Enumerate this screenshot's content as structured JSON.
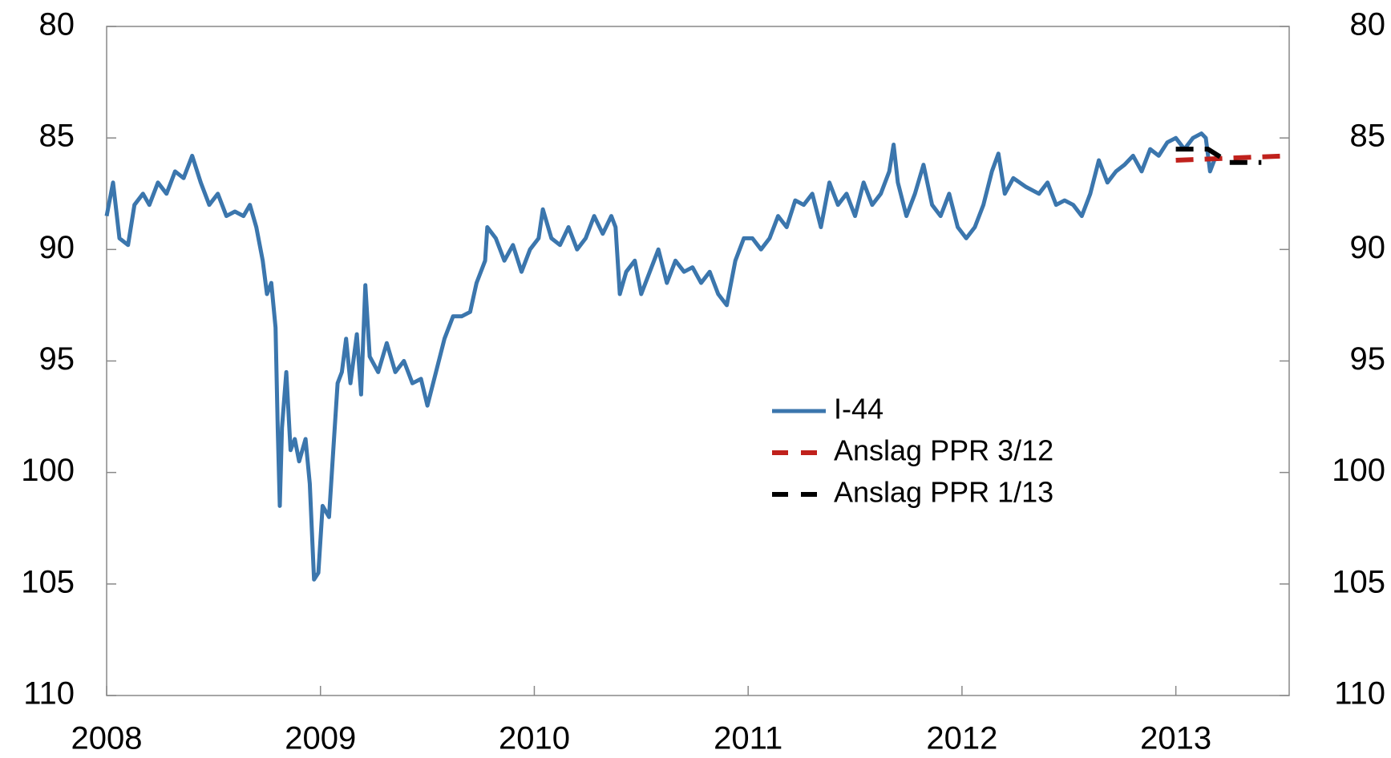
{
  "chart_data": {
    "type": "line",
    "xlim": [
      2008,
      2013.53
    ],
    "xticks": [
      2008,
      2009,
      2010,
      2011,
      2012,
      2013
    ],
    "ylim": [
      80,
      110
    ],
    "yticks": [
      80,
      85,
      90,
      95,
      100,
      105,
      110
    ],
    "y2lim": [
      80,
      110
    ],
    "y2ticks": [
      80,
      85,
      90,
      95,
      100,
      105,
      110
    ],
    "y_inverted": true,
    "legend": "center",
    "series": [
      {
        "name": "I-44",
        "color": "#3b76ad",
        "dash": false,
        "x": [
          2008.0,
          2008.03,
          2008.06,
          2008.1,
          2008.13,
          2008.17,
          2008.2,
          2008.24,
          2008.28,
          2008.32,
          2008.36,
          2008.4,
          2008.44,
          2008.48,
          2008.52,
          2008.56,
          2008.6,
          2008.64,
          2008.67,
          2008.7,
          2008.73,
          2008.75,
          2008.77,
          2008.79,
          2008.8,
          2008.81,
          2008.82,
          2008.84,
          2008.86,
          2008.88,
          2008.9,
          2008.93,
          2008.95,
          2008.97,
          2008.99,
          2009.01,
          2009.04,
          2009.06,
          2009.08,
          2009.1,
          2009.12,
          2009.14,
          2009.17,
          2009.19,
          2009.21,
          2009.23,
          2009.27,
          2009.31,
          2009.35,
          2009.39,
          2009.43,
          2009.47,
          2009.5,
          2009.54,
          2009.58,
          2009.62,
          2009.66,
          2009.7,
          2009.73,
          2009.77,
          2009.78,
          2009.82,
          2009.86,
          2009.9,
          2009.94,
          2009.98,
          2010.02,
          2010.04,
          2010.08,
          2010.12,
          2010.16,
          2010.2,
          2010.24,
          2010.28,
          2010.32,
          2010.36,
          2010.38,
          2010.4,
          2010.43,
          2010.47,
          2010.5,
          2010.54,
          2010.58,
          2010.62,
          2010.66,
          2010.7,
          2010.74,
          2010.78,
          2010.82,
          2010.86,
          2010.9,
          2010.94,
          2010.98,
          2011.02,
          2011.06,
          2011.1,
          2011.14,
          2011.18,
          2011.22,
          2011.26,
          2011.3,
          2011.34,
          2011.38,
          2011.42,
          2011.46,
          2011.5,
          2011.54,
          2011.58,
          2011.62,
          2011.66,
          2011.68,
          2011.7,
          2011.74,
          2011.78,
          2011.82,
          2011.86,
          2011.9,
          2011.94,
          2011.98,
          2012.02,
          2012.06,
          2012.1,
          2012.14,
          2012.17,
          2012.2,
          2012.24,
          2012.3,
          2012.36,
          2012.4,
          2012.44,
          2012.48,
          2012.52,
          2012.56,
          2012.6,
          2012.64,
          2012.68,
          2012.72,
          2012.76,
          2012.8,
          2012.84,
          2012.88,
          2012.92,
          2012.96,
          2013.0,
          2013.04,
          2013.08,
          2013.12,
          2013.14,
          2013.16,
          2013.18
        ],
        "values": [
          88.5,
          87.0,
          89.5,
          89.8,
          88.0,
          87.5,
          88.0,
          87.0,
          87.5,
          86.5,
          86.8,
          85.8,
          87.0,
          88.0,
          87.5,
          88.5,
          88.3,
          88.5,
          88.0,
          89.0,
          90.5,
          92.0,
          91.5,
          93.5,
          98.0,
          101.5,
          98.0,
          95.5,
          99.0,
          98.5,
          99.5,
          98.5,
          100.5,
          104.8,
          104.5,
          101.5,
          102.0,
          99.0,
          96.0,
          95.5,
          94.0,
          96.0,
          93.8,
          96.5,
          91.6,
          94.8,
          95.5,
          94.2,
          95.5,
          95.0,
          96.0,
          95.8,
          97.0,
          95.5,
          94.0,
          93.0,
          93.0,
          92.8,
          91.5,
          90.5,
          89.0,
          89.5,
          90.5,
          89.8,
          91.0,
          90.0,
          89.5,
          88.2,
          89.5,
          89.8,
          89.0,
          90.0,
          89.5,
          88.5,
          89.3,
          88.5,
          89.0,
          92.0,
          91.0,
          90.5,
          92.0,
          91.0,
          90.0,
          91.5,
          90.5,
          91.0,
          90.8,
          91.5,
          91.0,
          92.0,
          92.5,
          90.5,
          89.5,
          89.5,
          90.0,
          89.5,
          88.5,
          89.0,
          87.8,
          88.0,
          87.5,
          89.0,
          87.0,
          88.0,
          87.5,
          88.5,
          87.0,
          88.0,
          87.5,
          86.5,
          85.3,
          87.0,
          88.5,
          87.5,
          86.2,
          88.0,
          88.5,
          87.5,
          89.0,
          89.5,
          89.0,
          88.0,
          86.5,
          85.7,
          87.5,
          86.8,
          87.2,
          87.5,
          87.0,
          88.0,
          87.8,
          88.0,
          88.5,
          87.5,
          86.0,
          87.0,
          86.5,
          86.2,
          85.8,
          86.5,
          85.5,
          85.8,
          85.2,
          85.0,
          85.5,
          85.0,
          84.8,
          85.0,
          86.5,
          86.0
        ]
      },
      {
        "name": "Anslag PPR 3/12",
        "color": "#c0211c",
        "dash": true,
        "x": [
          2013.0,
          2013.53
        ],
        "values": [
          86.0,
          85.8
        ]
      },
      {
        "name": "Anslag PPR 1/13",
        "color": "#000000",
        "dash": true,
        "x": [
          2013.0,
          2013.15,
          2013.25,
          2013.4
        ],
        "values": [
          85.5,
          85.5,
          86.1,
          86.1
        ]
      }
    ]
  }
}
